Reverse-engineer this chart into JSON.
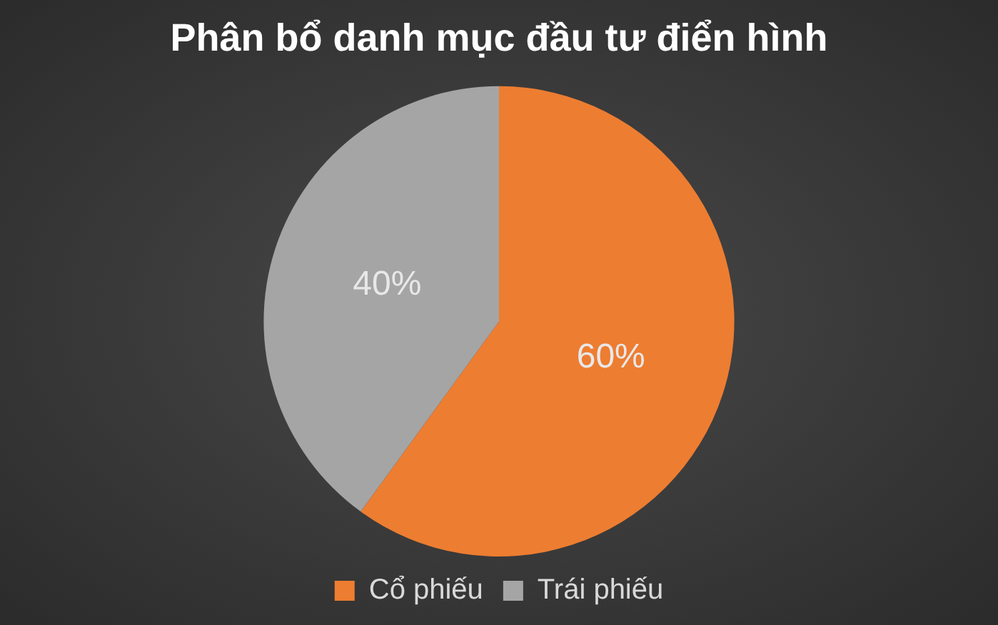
{
  "chart_data": {
    "type": "pie",
    "title": "Phân bổ danh mục đầu tư điển hình",
    "categories": [
      "Cổ phiếu",
      "Trái phiếu"
    ],
    "values": [
      60,
      40
    ],
    "colors": [
      "#ed7d31",
      "#a5a5a5"
    ],
    "value_labels": [
      "60%",
      "40%"
    ],
    "legend": "bottom"
  }
}
